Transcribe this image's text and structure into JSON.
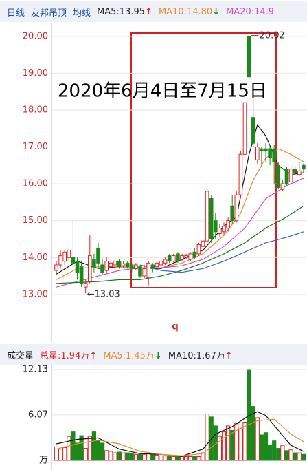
{
  "header": {
    "items": [
      {
        "text": "日线",
        "color": "#1a4fa0"
      },
      {
        "text": "友邦吊顶",
        "color": "#1a4fa0"
      },
      {
        "text": "均线",
        "color": "#1a4fa0"
      },
      {
        "text": "MA5:13.95",
        "color": "#222222",
        "arrow": "↑",
        "arrow_color": "#e02020"
      },
      {
        "text": "MA10:14.80",
        "color": "#e8892b",
        "arrow": "↓",
        "arrow_color": "#1a8a1a"
      },
      {
        "text": "MA20:14.9",
        "color": "#e040c0"
      }
    ]
  },
  "volume_header": {
    "items": [
      {
        "text": "成交量",
        "color": "#222222"
      },
      {
        "text": "总量:1.94万",
        "color": "#e02020",
        "arrow": "↑",
        "arrow_color": "#e02020"
      },
      {
        "text": "MA5:1.45万",
        "color": "#e8892b",
        "arrow": "↓",
        "arrow_color": "#1a8a1a"
      },
      {
        "text": "MA10:1.67万",
        "color": "#222222",
        "arrow": "↑",
        "arrow_color": "#e02020"
      }
    ]
  },
  "chart_data": [
    {
      "type": "candlestick",
      "title": "2020年6月4日至7月15日",
      "annotation": "q",
      "high_label": "20.02",
      "low_label": "←13.03",
      "up_color": "#e02020",
      "down_color": "#1a8a1a",
      "grid": true,
      "ylim": [
        11.84,
        20.37
      ],
      "yticks": [
        {
          "value": 13,
          "label": "13.00"
        },
        {
          "value": 14,
          "label": "14.00"
        },
        {
          "value": 15,
          "label": "15.00"
        },
        {
          "value": 16,
          "label": "16.00"
        },
        {
          "value": 17,
          "label": "17.00"
        },
        {
          "value": 18,
          "label": "18.00"
        },
        {
          "value": 19,
          "label": "19.00"
        },
        {
          "value": 20,
          "label": "20.00"
        }
      ],
      "open": [
        13.65,
        13.8,
        13.9,
        14.0,
        14.0,
        13.9,
        13.75,
        13.2,
        13.35,
        13.95,
        14.25,
        13.8,
        13.65,
        13.75,
        13.8,
        13.9,
        13.78,
        13.85,
        13.8,
        13.7,
        13.75,
        13.5,
        13.45,
        13.8,
        13.75,
        13.8,
        13.85,
        14.05,
        13.9,
        14.1,
        13.95,
        14.0,
        13.95,
        14.15,
        14.1,
        14.3,
        14.45,
        15.6,
        15.0,
        14.65,
        14.7,
        14.8,
        15.4,
        15.0,
        15.7,
        16.8,
        20.0,
        17.8,
        16.65,
        16.95,
        16.95,
        16.95,
        16.95,
        16.5,
        15.85,
        16.4,
        16.05,
        16.4,
        16.25,
        16.5
      ],
      "high": [
        13.9,
        14.2,
        14.2,
        14.25,
        15.03,
        14.0,
        13.9,
        13.4,
        14.6,
        14.1,
        14.4,
        13.95,
        14.0,
        13.95,
        13.95,
        13.95,
        13.9,
        13.9,
        13.85,
        13.85,
        13.8,
        13.8,
        13.9,
        13.85,
        13.9,
        13.95,
        14.0,
        14.1,
        14.1,
        14.15,
        14.1,
        14.1,
        14.15,
        14.25,
        14.4,
        14.6,
        15.85,
        15.7,
        15.2,
        14.9,
        14.95,
        15.1,
        15.7,
        15.8,
        16.9,
        18.3,
        20.02,
        18.3,
        17.1,
        17.0,
        17.1,
        17.0,
        17.05,
        16.6,
        16.1,
        16.45,
        16.5,
        16.45,
        16.6,
        16.55
      ],
      "low": [
        13.55,
        13.7,
        13.8,
        13.9,
        13.7,
        13.4,
        13.2,
        13.03,
        13.3,
        13.6,
        13.7,
        13.55,
        13.6,
        13.7,
        13.7,
        13.7,
        13.72,
        13.7,
        13.6,
        13.65,
        13.45,
        13.45,
        13.25,
        13.6,
        13.7,
        13.75,
        13.8,
        13.85,
        13.85,
        13.85,
        13.9,
        13.95,
        13.9,
        13.95,
        14.05,
        14.2,
        14.4,
        14.4,
        14.5,
        14.55,
        14.6,
        14.7,
        14.9,
        14.95,
        15.6,
        16.7,
        18.85,
        17.0,
        16.55,
        16.5,
        16.6,
        16.5,
        16.0,
        15.85,
        15.8,
        15.95,
        16.0,
        16.25,
        16.2,
        16.3
      ],
      "close": [
        13.8,
        14.05,
        14.15,
        14.2,
        13.85,
        13.6,
        13.3,
        13.3,
        14.05,
        13.75,
        13.85,
        13.6,
        13.9,
        13.85,
        13.9,
        13.75,
        13.83,
        13.75,
        13.7,
        13.8,
        13.5,
        13.7,
        13.85,
        13.7,
        13.85,
        13.9,
        13.95,
        13.9,
        14.05,
        13.9,
        14.05,
        14.05,
        14.1,
        14.0,
        14.35,
        14.45,
        15.8,
        14.5,
        14.7,
        14.8,
        14.85,
        15.0,
        15.0,
        15.7,
        16.8,
        18.2,
        18.9,
        17.1,
        17.0,
        16.9,
        16.9,
        16.7,
        16.6,
        15.9,
        16.0,
        16.0,
        16.4,
        16.3,
        16.35,
        16.4
      ],
      "series": [
        {
          "name": "MA5",
          "color": "#111111",
          "x": [
            0,
            5,
            10,
            15,
            20,
            25,
            30,
            35,
            40,
            43,
            46,
            48,
            50,
            53,
            56,
            59
          ],
          "values": [
            13.55,
            13.9,
            13.7,
            13.75,
            13.72,
            13.7,
            13.95,
            14.2,
            14.85,
            15.1,
            16.8,
            17.6,
            17.3,
            16.5,
            16.25,
            16.3
          ]
        },
        {
          "name": "MA10",
          "color": "#e8892b",
          "x": [
            0,
            5,
            10,
            15,
            20,
            25,
            30,
            35,
            40,
            44,
            47,
            50,
            53,
            56,
            59
          ],
          "values": [
            13.4,
            13.7,
            13.75,
            13.75,
            13.72,
            13.72,
            13.85,
            14.1,
            14.6,
            15.2,
            16.1,
            16.7,
            16.95,
            16.8,
            16.6
          ]
        },
        {
          "name": "MA20",
          "color": "#e040c0",
          "x": [
            0,
            5,
            10,
            15,
            20,
            25,
            30,
            35,
            40,
            45,
            50,
            55,
            59
          ],
          "values": [
            13.2,
            13.35,
            13.5,
            13.65,
            13.72,
            13.72,
            13.78,
            13.95,
            14.3,
            14.8,
            15.6,
            15.95,
            16.15
          ]
        },
        {
          "name": "MA30",
          "color": "#1a7a1a",
          "x": [
            0,
            10,
            15,
            20,
            25,
            30,
            35,
            40,
            45,
            50,
            55,
            59
          ],
          "values": [
            13.3,
            13.35,
            13.4,
            13.4,
            13.5,
            13.65,
            13.85,
            14.1,
            14.4,
            14.8,
            15.1,
            15.4
          ]
        },
        {
          "name": "MA60",
          "color": "#3060d0",
          "x": [
            20,
            25,
            30,
            35,
            40,
            45,
            50,
            55,
            59
          ],
          "values": [
            13.8,
            13.65,
            13.6,
            13.7,
            13.9,
            14.15,
            14.4,
            14.55,
            14.7
          ]
        }
      ]
    },
    {
      "type": "volume",
      "ylim": [
        -1.29,
        13.05
      ],
      "yticks": [
        {
          "value": 0,
          "label": "万"
        },
        {
          "value": 6.07,
          "label": "6.07"
        },
        {
          "value": 12.13,
          "label": "12.13"
        }
      ],
      "values": [
        1.8,
        1.5,
        1.7,
        3.2,
        3.8,
        2.3,
        3.3,
        1.6,
        3.2,
        3.8,
        2.7,
        2.3,
        1.3,
        1.2,
        1.0,
        1.1,
        1.0,
        1.0,
        0.9,
        0.8,
        0.8,
        0.8,
        0.9,
        0.8,
        0.7,
        0.6,
        0.6,
        0.5,
        0.5,
        0.5,
        0.5,
        0.5,
        0.5,
        0.5,
        0.5,
        1.0,
        6.2,
        5.8,
        4.6,
        3.2,
        3.8,
        4.6,
        4.0,
        4.9,
        4.2,
        5.1,
        12.13,
        7.2,
        5.7,
        3.4,
        3.7,
        2.0,
        2.6,
        1.6,
        2.0,
        1.3,
        1.4,
        1.0,
        1.0,
        0.8
      ],
      "series": [
        {
          "name": "MA5",
          "color": "#111111",
          "x": [
            0,
            5,
            10,
            15,
            20,
            25,
            30,
            35,
            38,
            42,
            46,
            48,
            50,
            53,
            56,
            59
          ],
          "values": [
            2.2,
            2.8,
            3.0,
            1.5,
            0.9,
            0.8,
            0.55,
            1.5,
            3.5,
            4.5,
            6.0,
            6.5,
            6.0,
            4.0,
            2.0,
            1.2
          ]
        },
        {
          "name": "MA10",
          "color": "#e8892b",
          "x": [
            0,
            5,
            10,
            15,
            20,
            25,
            30,
            35,
            40,
            44,
            48,
            52,
            56,
            59
          ],
          "values": [
            1.5,
            2.2,
            2.7,
            2.2,
            1.2,
            0.8,
            0.6,
            0.9,
            3.0,
            4.3,
            5.3,
            5.5,
            3.5,
            2.5
          ]
        }
      ]
    }
  ]
}
